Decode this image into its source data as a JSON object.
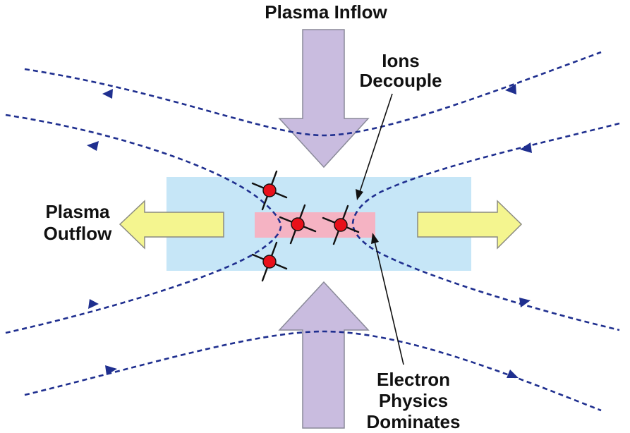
{
  "labels": {
    "plasma_inflow": "Plasma Inflow",
    "ions_decouple_line1": "Ions",
    "ions_decouple_line2": "Decouple",
    "plasma_outflow_line1": "Plasma",
    "plasma_outflow_line2": "Outflow",
    "electron_line1": "Electron",
    "electron_line2": "Physics",
    "electron_line3": "Dominates"
  },
  "colors": {
    "ion_region": "#c6e6f7",
    "electron_region": "#f5b3c3",
    "inflow_arrow": "#c9bcdf",
    "outflow_arrow": "#f4f58f",
    "field_line": "#1f2f8f",
    "particle": "#e8101a"
  }
}
